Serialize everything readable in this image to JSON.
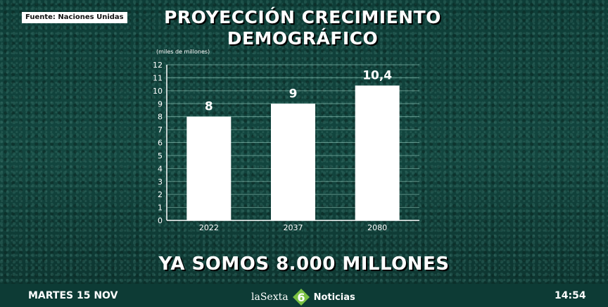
{
  "source_label": "Fuente: Naciones Unidas",
  "title_line1": "PROYECCIÓN CRECIMIENTO",
  "title_line2": "DEMOGRÁFICO",
  "headline": "YA SOMOS 8.000 MILLONES",
  "ticker": {
    "date": "MARTES 15 NOV",
    "brand": "laSexta",
    "brand_number": "6",
    "brand_suffix": "Noticias",
    "time": "14:54"
  },
  "colors": {
    "bars": "#ffffff",
    "gridlines": "#9fd3c6",
    "logo_green": "#7ac143"
  },
  "chart_data": {
    "type": "bar",
    "categories": [
      "2022",
      "2037",
      "2080"
    ],
    "values": [
      8,
      9,
      10.4
    ],
    "value_labels": [
      "8",
      "9",
      "10,4"
    ],
    "ylabel": "(miles de millones)",
    "ylim": [
      0,
      12
    ],
    "yticks": [
      0,
      1,
      2,
      3,
      4,
      5,
      6,
      7,
      8,
      9,
      10,
      11,
      12
    ],
    "grid": true
  }
}
